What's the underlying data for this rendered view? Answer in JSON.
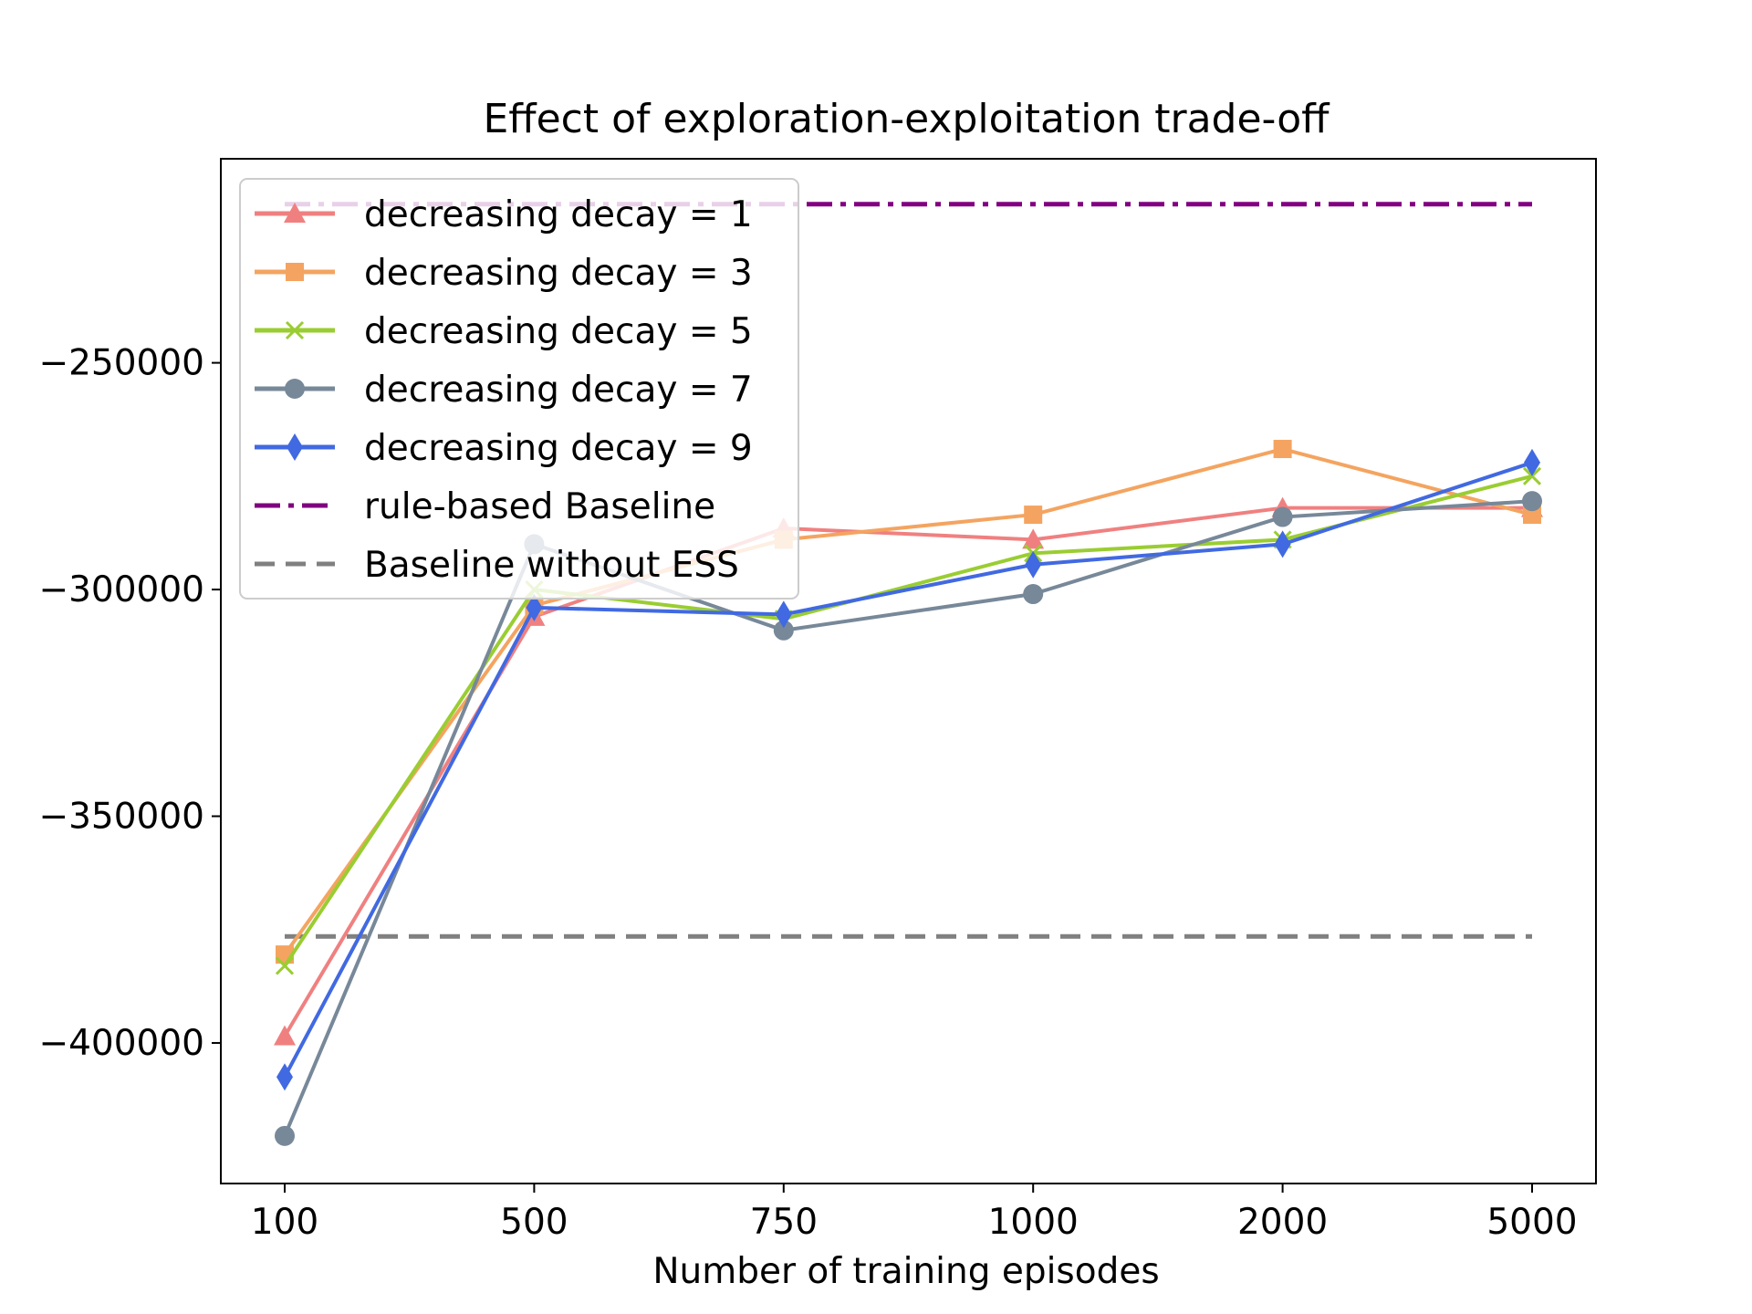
{
  "chart_data": {
    "type": "line",
    "title": "Effect of exploration-exploitation trade-off",
    "xlabel": "Number of training episodes",
    "ylabel": "",
    "categories": [
      "100",
      "500",
      "750",
      "1000",
      "2000",
      "5000"
    ],
    "ylim": [
      -431000,
      -205000
    ],
    "yticks": [
      -250000,
      -300000,
      -350000,
      -400000
    ],
    "ytick_labels": [
      "−250000",
      "−300000",
      "−350000",
      "−400000"
    ],
    "legend_position": "upper-left",
    "grid": false,
    "series": [
      {
        "name": "decreasing decay = 1",
        "color": "#f08080",
        "marker": "triangle",
        "values": [
          -398500,
          -306000,
          -286500,
          -289000,
          -282000,
          -282000
        ]
      },
      {
        "name": "decreasing decay = 3",
        "color": "#f4a460",
        "marker": "square",
        "values": [
          -380500,
          -303500,
          -289000,
          -283500,
          -269000,
          -283500
        ]
      },
      {
        "name": "decreasing decay = 5",
        "color": "#9acd32",
        "marker": "x",
        "values": [
          -383000,
          -300000,
          -306500,
          -292000,
          -289000,
          -275000
        ]
      },
      {
        "name": "decreasing decay = 7",
        "color": "#778899",
        "marker": "circle",
        "values": [
          -420500,
          -290000,
          -309000,
          -301000,
          -284000,
          -280500
        ]
      },
      {
        "name": "decreasing decay = 9",
        "color": "#4169e1",
        "marker": "diamond",
        "values": [
          -407500,
          -304000,
          -305500,
          -294500,
          -290000,
          -272000
        ]
      }
    ],
    "reference_lines": [
      {
        "name": "rule-based Baseline",
        "color": "#800080",
        "style": "dashdot",
        "value": -215000
      },
      {
        "name": "Baseline without ESS",
        "color": "#808080",
        "style": "dashed",
        "value": -376500
      }
    ]
  }
}
